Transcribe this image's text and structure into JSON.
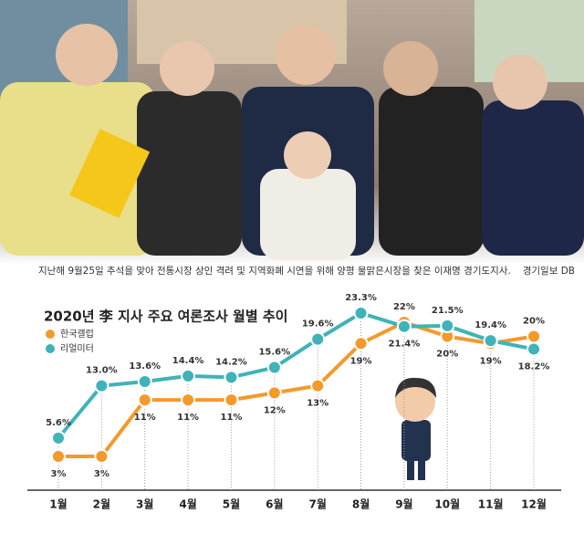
{
  "photo_caption": "지난해 9월25일 추석을 맞아 전통시장 상인 격려 및 지역화폐 시연을 위해 양평 물맑은시장을 찾은 이재명 경기도지사.",
  "photo_credit": "경기일보 DB",
  "chart_data": {
    "type": "line",
    "title": "2020년 李 지사 주요 여론조사 월별 추이",
    "categories": [
      "1월",
      "2월",
      "3월",
      "4월",
      "5월",
      "6월",
      "7월",
      "8월",
      "9월",
      "10월",
      "11월",
      "12월"
    ],
    "series": [
      {
        "name": "한국갤럽",
        "color": "#f39a2b",
        "values": [
          3,
          3,
          11,
          11,
          11,
          12,
          13,
          19,
          22,
          20,
          19,
          20
        ],
        "value_labels": [
          "3%",
          "3%",
          "11%",
          "11%",
          "11%",
          "12%",
          "13%",
          "19%",
          "22%",
          "20%",
          "19%",
          "20%"
        ]
      },
      {
        "name": "리얼미터",
        "color": "#3fb3b8",
        "values": [
          5.6,
          13.0,
          13.6,
          14.4,
          14.2,
          15.6,
          19.6,
          23.3,
          21.4,
          21.5,
          19.4,
          18.2
        ],
        "value_labels": [
          "5.6%",
          "13.0%",
          "13.6%",
          "14.4%",
          "14.2%",
          "15.6%",
          "19.6%",
          "23.3%",
          "21.4%",
          "21.5%",
          "19.4%",
          "18.2%"
        ]
      }
    ],
    "legend": "top-left"
  }
}
